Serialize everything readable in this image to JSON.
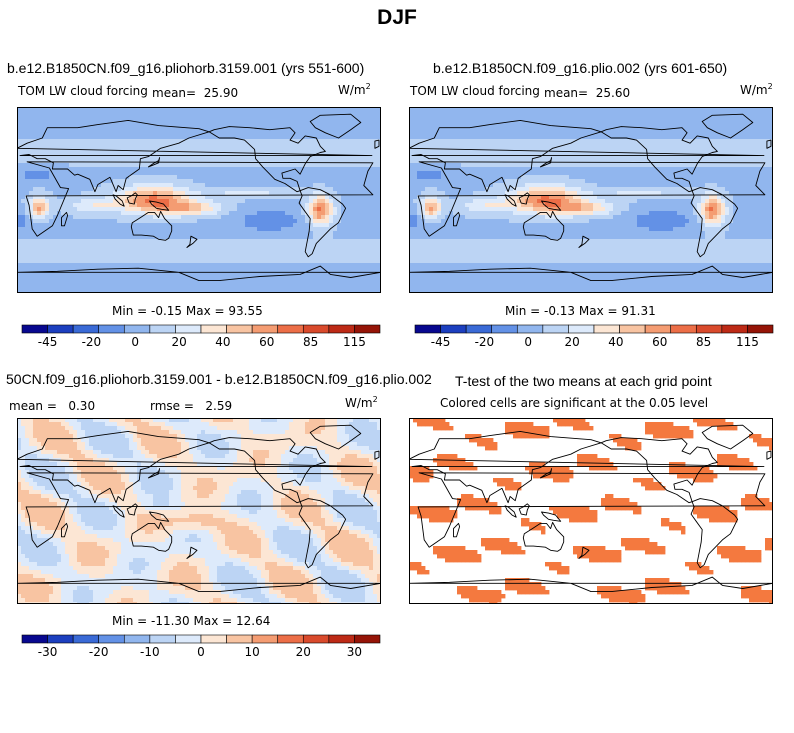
{
  "figure": {
    "title": "DJF"
  },
  "colors": {
    "continent_outline": "#000000",
    "significance": "#f4793f"
  },
  "chart_data": [
    {
      "type": "heatmap",
      "title": "b.e12.B1850CN.f09_g16.pliohorb.3159.001 (yrs 551-600)",
      "variable": "TOM LW cloud forcing",
      "units": "W/m",
      "units_sup": "2",
      "mean_label": "mean=",
      "mean": "25.90",
      "min_label": "Min =",
      "min": "-0.15",
      "max_label": "Max =",
      "max": "93.55",
      "colorbar": {
        "tick_labels": [
          "-45",
          "-20",
          "0",
          "20",
          "40",
          "60",
          "85",
          "115"
        ],
        "colors": [
          "#08088f",
          "#1c3fbf",
          "#3a6ad6",
          "#6391e6",
          "#91b6ee",
          "#bcd4f4",
          "#ddeafb",
          "#fce6d4",
          "#f8c4a2",
          "#f49c72",
          "#ec6e47",
          "#d94a2c",
          "#bd2a16",
          "#951407"
        ]
      }
    },
    {
      "type": "heatmap",
      "title": "b.e12.B1850CN.f09_g16.plio.002 (yrs 601-650)",
      "variable": "TOM LW cloud forcing",
      "units": "W/m",
      "units_sup": "2",
      "mean_label": "mean=",
      "mean": "25.60",
      "min_label": "Min =",
      "min": "-0.13",
      "max_label": "Max =",
      "max": "91.31",
      "colorbar": {
        "tick_labels": [
          "-45",
          "-20",
          "0",
          "20",
          "40",
          "60",
          "85",
          "115"
        ],
        "colors": [
          "#08088f",
          "#1c3fbf",
          "#3a6ad6",
          "#6391e6",
          "#91b6ee",
          "#bcd4f4",
          "#ddeafb",
          "#fce6d4",
          "#f8c4a2",
          "#f49c72",
          "#ec6e47",
          "#d94a2c",
          "#bd2a16",
          "#951407"
        ]
      }
    },
    {
      "type": "heatmap",
      "title": "50CN.f09_g16.pliohorb.3159.001 - b.e12.B1850CN.f09_g16.plio.002",
      "units": "W/m",
      "units_sup": "2",
      "mean_label": "mean =",
      "mean": "0.30",
      "rmse_label": "rmse =",
      "rmse": "2.59",
      "min_label": "Min =",
      "min": "-11.30",
      "max_label": "Max =",
      "max": "12.64",
      "colorbar": {
        "tick_labels": [
          "-30",
          "-20",
          "-10",
          "0",
          "10",
          "20",
          "30"
        ],
        "colors": [
          "#08088f",
          "#1c3fbf",
          "#3a6ad6",
          "#6391e6",
          "#91b6ee",
          "#bcd4f4",
          "#ddeafb",
          "#fce6d4",
          "#f8c4a2",
          "#f49c72",
          "#ec6e47",
          "#d94a2c",
          "#bd2a16",
          "#951407"
        ]
      }
    },
    {
      "type": "heatmap",
      "title": "T-test of the two means at each grid point",
      "subtitle": "Colored cells are significant at the 0.05 level"
    }
  ]
}
